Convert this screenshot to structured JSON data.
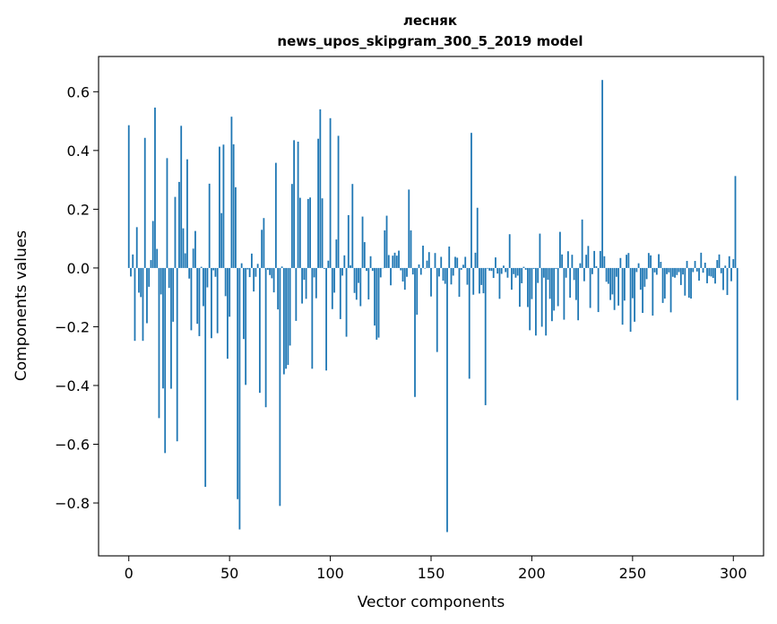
{
  "chart_data": {
    "type": "bar",
    "title_line1": "лесняк",
    "title_line2": "news_upos_skipgram_300_5_2019 model",
    "xlabel": "Vector components",
    "ylabel": "Components values",
    "xlim": [
      -15,
      315
    ],
    "ylim": [
      -0.98,
      0.72
    ],
    "xticks": [
      0,
      50,
      100,
      150,
      200,
      250,
      300
    ],
    "xtick_labels": [
      "0",
      "50",
      "100",
      "150",
      "200",
      "250",
      "300"
    ],
    "yticks": [
      -0.8,
      -0.6,
      -0.4,
      -0.2,
      0.0,
      0.2,
      0.4,
      0.6
    ],
    "ytick_labels": [
      "−0.8",
      "−0.6",
      "−0.4",
      "−0.2",
      "0.0",
      "0.2",
      "0.4",
      "0.6"
    ],
    "bar_color": "#1f77b4",
    "x_start": 0,
    "values": [
      0.486,
      -0.029,
      0.046,
      -0.248,
      0.139,
      -0.084,
      -0.099,
      -0.248,
      0.443,
      -0.188,
      -0.064,
      0.027,
      0.16,
      0.546,
      0.065,
      -0.511,
      -0.09,
      -0.41,
      -0.63,
      0.374,
      -0.068,
      -0.411,
      -0.183,
      0.242,
      -0.59,
      0.293,
      0.484,
      0.135,
      0.05,
      0.37,
      -0.036,
      -0.212,
      0.066,
      0.126,
      -0.19,
      -0.232,
      0.004,
      -0.13,
      -0.745,
      -0.066,
      0.287,
      -0.239,
      -0.008,
      -0.03,
      -0.222,
      0.413,
      0.187,
      0.42,
      -0.096,
      -0.309,
      -0.166,
      0.515,
      0.421,
      0.275,
      -0.787,
      -0.89,
      0.016,
      -0.242,
      -0.398,
      -0.005,
      -0.031,
      0.049,
      -0.08,
      -0.03,
      0.014,
      -0.425,
      0.13,
      0.17,
      -0.474,
      -0.006,
      -0.024,
      -0.035,
      -0.083,
      0.358,
      -0.141,
      -0.81,
      0.005,
      -0.362,
      -0.343,
      -0.33,
      -0.264,
      0.286,
      0.435,
      -0.18,
      0.43,
      0.239,
      -0.121,
      -0.04,
      -0.105,
      0.235,
      0.24,
      -0.343,
      -0.032,
      -0.103,
      0.44,
      0.54,
      0.237,
      -0.003,
      -0.349,
      0.025,
      0.51,
      -0.14,
      -0.084,
      0.097,
      0.45,
      -0.174,
      -0.026,
      0.043,
      -0.234,
      0.18,
      0.009,
      0.286,
      -0.085,
      -0.108,
      -0.051,
      -0.13,
      0.175,
      0.088,
      -0.01,
      -0.107,
      0.04,
      -0.01,
      -0.196,
      -0.244,
      -0.237,
      -0.032,
      -0.001,
      0.128,
      0.178,
      0.044,
      -0.059,
      0.042,
      0.052,
      0.042,
      0.059,
      -0.008,
      -0.046,
      -0.074,
      -0.03,
      0.267,
      0.128,
      -0.022,
      -0.439,
      -0.159,
      0.012,
      -0.023,
      0.076,
      -0.002,
      0.025,
      0.054,
      -0.097,
      0.0,
      0.051,
      -0.286,
      -0.029,
      0.038,
      -0.043,
      -0.054,
      -0.899,
      0.073,
      -0.056,
      -0.026,
      0.038,
      0.035,
      -0.098,
      -0.006,
      0.011,
      0.038,
      -0.057,
      -0.377,
      0.46,
      -0.091,
      0.052,
      0.205,
      -0.087,
      -0.058,
      -0.086,
      -0.467,
      -0.002,
      -0.009,
      -0.01,
      -0.034,
      0.036,
      -0.019,
      -0.105,
      -0.02,
      0.008,
      -0.014,
      -0.033,
      0.115,
      -0.074,
      -0.021,
      -0.033,
      -0.026,
      -0.132,
      -0.052,
      0.004,
      -0.006,
      -0.133,
      -0.212,
      -0.106,
      -0.003,
      -0.23,
      -0.051,
      0.117,
      -0.2,
      -0.033,
      -0.23,
      -0.04,
      -0.105,
      -0.181,
      -0.145,
      -0.003,
      -0.13,
      0.123,
      0.046,
      -0.176,
      -0.033,
      0.057,
      -0.101,
      0.045,
      -0.041,
      -0.109,
      -0.178,
      0.016,
      0.165,
      -0.045,
      0.045,
      0.075,
      -0.136,
      -0.021,
      0.058,
      0.006,
      -0.15,
      0.058,
      0.64,
      0.04,
      -0.047,
      -0.054,
      -0.109,
      -0.09,
      -0.143,
      -0.03,
      -0.128,
      0.034,
      -0.193,
      -0.111,
      0.045,
      0.051,
      -0.217,
      -0.103,
      -0.183,
      -0.014,
      0.016,
      -0.074,
      -0.153,
      -0.064,
      -0.038,
      0.051,
      0.043,
      -0.162,
      -0.015,
      -0.023,
      0.047,
      0.021,
      -0.119,
      -0.104,
      -0.021,
      -0.015,
      -0.151,
      -0.03,
      -0.033,
      -0.024,
      -0.014,
      -0.058,
      -0.022,
      -0.094,
      0.024,
      -0.101,
      -0.104,
      -0.014,
      0.024,
      -0.012,
      -0.043,
      0.052,
      -0.016,
      0.018,
      -0.052,
      -0.027,
      -0.029,
      -0.034,
      -0.053,
      0.027,
      0.046,
      -0.018,
      -0.075,
      0.008,
      -0.092,
      0.04,
      -0.045,
      0.03,
      0.313,
      -0.45
    ]
  }
}
